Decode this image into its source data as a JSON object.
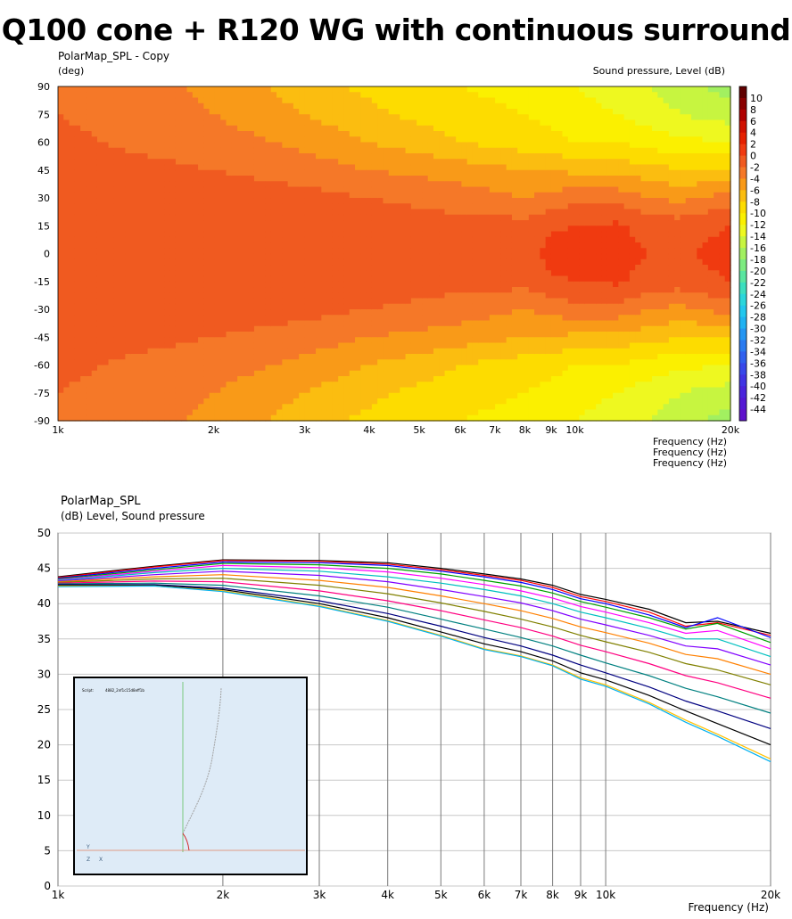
{
  "page": {
    "title": "Q100 cone + R120 WG with continuous surround"
  },
  "colors": {
    "heatmap_scale": [
      "#600000",
      "#8a0000",
      "#b00000",
      "#d01000",
      "#e52000",
      "#f03a10",
      "#f05a20",
      "#f57828",
      "#f99a18",
      "#fbbd10",
      "#fddc00",
      "#fbf000",
      "#eef820",
      "#c7f540",
      "#a2f060",
      "#7deb80",
      "#5ae6a0",
      "#3cdfbf",
      "#2ad6db",
      "#22c7ee",
      "#20b2f2",
      "#2496f2",
      "#2a7bf0",
      "#3060ee",
      "#3848ea",
      "#4034e4",
      "#4a24dc",
      "#5418d4",
      "#5e10cc"
    ],
    "inset_background": "#deebf7",
    "grid": "#c8c8c8"
  },
  "chart_data": [
    {
      "type": "heatmap",
      "title": "PolarMap_SPL  -  Copy",
      "ylabel": "(deg)",
      "zlabel": "Sound pressure, Level  (dB)",
      "xlabel_lines": [
        "Frequency  (Hz)",
        "Frequency  (Hz)",
        "Frequency  (Hz)"
      ],
      "x_scale": "log",
      "xlim": [
        1000,
        20000
      ],
      "ylim": [
        -90,
        90
      ],
      "x_ticks": [
        {
          "v": 1000,
          "label": "1k"
        },
        {
          "v": 2000,
          "label": "2k"
        },
        {
          "v": 3000,
          "label": "3k"
        },
        {
          "v": 4000,
          "label": "4k"
        },
        {
          "v": 5000,
          "label": "5k"
        },
        {
          "v": 6000,
          "label": "6k"
        },
        {
          "v": 7000,
          "label": "7k"
        },
        {
          "v": 8000,
          "label": "8k"
        },
        {
          "v": 9000,
          "label": "9k"
        },
        {
          "v": 10000,
          "label": "10k"
        },
        {
          "v": 20000,
          "label": "20k"
        }
      ],
      "y_ticks": [
        90,
        75,
        60,
        45,
        30,
        15,
        0,
        -15,
        -30,
        -45,
        -60,
        -75,
        -90
      ],
      "colorbar_ticks": [
        10,
        8,
        6,
        4,
        2,
        0,
        -2,
        -4,
        -6,
        -8,
        -10,
        -12,
        -14,
        -16,
        -18,
        -20,
        -22,
        -24,
        -26,
        -28,
        -30,
        -32,
        -34,
        -36,
        -38,
        -40,
        -42,
        -44
      ],
      "zlim": [
        -46,
        12
      ],
      "frequencies": [
        1000,
        1500,
        2000,
        3000,
        4000,
        5000,
        6000,
        7000,
        8000,
        9000,
        10000,
        12000,
        14000,
        16000,
        20000
      ],
      "angles": [
        0,
        15,
        30,
        45,
        60,
        75,
        90
      ],
      "levels": [
        [
          0,
          0,
          0,
          0,
          -0.5,
          -0.5,
          -0.5,
          -0.5,
          -0.5,
          0.5,
          0.8,
          0.8,
          0,
          -0.5,
          1
        ],
        [
          0,
          0,
          0,
          -0.5,
          -0.7,
          -1,
          -1.3,
          -1.3,
          -1.2,
          -0.2,
          0,
          0.3,
          -0.8,
          -1,
          0
        ],
        [
          -0.5,
          -0.5,
          -0.7,
          -1.3,
          -2,
          -2.5,
          -3,
          -3.5,
          -4,
          -3.5,
          -2.5,
          -2.5,
          -4,
          -4.5,
          -3
        ],
        [
          -1,
          -1.5,
          -2,
          -3,
          -4,
          -4.5,
          -5,
          -5.5,
          -6,
          -6,
          -6.5,
          -7,
          -7,
          -8,
          -8
        ],
        [
          -1.5,
          -2.5,
          -3,
          -4.5,
          -6,
          -7,
          -8,
          -8.5,
          -9,
          -9.5,
          -10,
          -10,
          -11,
          -11.5,
          -12
        ],
        [
          -2,
          -3,
          -4,
          -6,
          -7.5,
          -8.5,
          -9,
          -9.5,
          -10,
          -10.5,
          -11,
          -12,
          -13,
          -14,
          -15
        ],
        [
          -2.5,
          -3.5,
          -4.5,
          -7,
          -8.5,
          -9.5,
          -10,
          -10.5,
          -11,
          -11.5,
          -12,
          -13,
          -14,
          -15,
          -17
        ]
      ]
    },
    {
      "type": "line",
      "title": "PolarMap_SPL",
      "ylabel": "(dB)  Level, Sound pressure",
      "xlabel": "Frequency  (Hz)",
      "x_scale": "log",
      "xlim": [
        1000,
        20000
      ],
      "ylim": [
        0,
        50
      ],
      "x_ticks": [
        {
          "v": 1000,
          "label": "1k"
        },
        {
          "v": 2000,
          "label": "2k"
        },
        {
          "v": 3000,
          "label": "3k"
        },
        {
          "v": 4000,
          "label": "4k"
        },
        {
          "v": 5000,
          "label": "5k"
        },
        {
          "v": 6000,
          "label": "6k"
        },
        {
          "v": 7000,
          "label": "7k"
        },
        {
          "v": 8000,
          "label": "8k"
        },
        {
          "v": 9000,
          "label": "9k"
        },
        {
          "v": 10000,
          "label": "10k"
        },
        {
          "v": 20000,
          "label": "20k"
        }
      ],
      "y_ticks": [
        0,
        5,
        10,
        15,
        20,
        25,
        30,
        35,
        40,
        45,
        50
      ],
      "x": [
        1000,
        1500,
        2000,
        3000,
        4000,
        5000,
        6000,
        7000,
        8000,
        9000,
        10000,
        12000,
        14000,
        16000,
        20000
      ],
      "series": [
        {
          "color": "#000000",
          "values": [
            43.8,
            45.3,
            46.2,
            46.1,
            45.8,
            45.0,
            44.2,
            43.5,
            42.6,
            41.3,
            40.6,
            39.2,
            37.3,
            37.5,
            35.8
          ]
        },
        {
          "color": "#ff0000",
          "values": [
            43.7,
            45.2,
            46.1,
            46.0,
            45.6,
            44.8,
            44.0,
            43.3,
            42.3,
            41.0,
            40.3,
            38.8,
            36.8,
            37.3,
            35.5
          ]
        },
        {
          "color": "#0000ff",
          "values": [
            43.6,
            45.0,
            45.9,
            45.8,
            45.4,
            44.6,
            43.8,
            43.0,
            42.0,
            40.7,
            40.0,
            38.4,
            36.6,
            38.0,
            35.2
          ]
        },
        {
          "color": "#00a000",
          "values": [
            43.5,
            44.8,
            45.7,
            45.5,
            45.0,
            44.2,
            43.3,
            42.5,
            41.5,
            40.3,
            39.5,
            38.0,
            36.4,
            37.2,
            34.5
          ]
        },
        {
          "color": "#ff00ff",
          "values": [
            43.4,
            44.6,
            45.4,
            45.1,
            44.5,
            43.6,
            42.7,
            41.8,
            40.8,
            39.6,
            38.8,
            37.3,
            35.8,
            36.2,
            33.6
          ]
        },
        {
          "color": "#00c0c0",
          "values": [
            43.3,
            44.4,
            45.0,
            44.6,
            43.8,
            42.9,
            42.0,
            41.1,
            40.0,
            38.8,
            38.0,
            36.5,
            35.0,
            35.0,
            32.5
          ]
        },
        {
          "color": "#8000ff",
          "values": [
            43.2,
            44.1,
            44.6,
            44.0,
            43.1,
            42.0,
            41.0,
            40.1,
            39.0,
            37.8,
            37.0,
            35.5,
            34.0,
            33.6,
            31.3
          ]
        },
        {
          "color": "#ff8000",
          "values": [
            43.1,
            43.8,
            44.1,
            43.3,
            42.3,
            41.1,
            40.0,
            39.0,
            37.9,
            36.7,
            35.9,
            34.4,
            32.8,
            32.2,
            30.0
          ]
        },
        {
          "color": "#808000",
          "values": [
            43.0,
            43.5,
            43.6,
            42.6,
            41.4,
            40.1,
            38.9,
            37.8,
            36.7,
            35.5,
            34.6,
            33.1,
            31.5,
            30.6,
            28.5
          ]
        },
        {
          "color": "#ff0080",
          "values": [
            42.9,
            43.2,
            43.1,
            41.8,
            40.4,
            39.0,
            37.7,
            36.6,
            35.4,
            34.1,
            33.2,
            31.5,
            29.8,
            28.8,
            26.6
          ]
        },
        {
          "color": "#008080",
          "values": [
            42.8,
            42.9,
            42.6,
            41.1,
            39.5,
            37.8,
            36.4,
            35.2,
            34.0,
            32.7,
            31.6,
            29.8,
            28.0,
            26.8,
            24.5
          ]
        },
        {
          "color": "#000080",
          "values": [
            42.7,
            42.7,
            42.2,
            40.4,
            38.6,
            36.8,
            35.2,
            34.0,
            32.7,
            31.3,
            30.2,
            28.2,
            26.2,
            24.8,
            22.3
          ]
        },
        {
          "color": "#000000",
          "values": [
            42.6,
            42.6,
            42.0,
            40.0,
            38.0,
            36.0,
            34.3,
            33.2,
            31.9,
            30.2,
            29.2,
            27.0,
            24.8,
            23.0,
            20.0
          ]
        },
        {
          "color": "#ffc000",
          "values": [
            42.5,
            42.5,
            41.8,
            39.7,
            37.6,
            35.5,
            33.6,
            32.6,
            31.3,
            29.5,
            28.5,
            26.0,
            23.5,
            21.5,
            18.0
          ]
        },
        {
          "color": "#00b0f0",
          "values": [
            42.4,
            42.5,
            41.7,
            39.6,
            37.5,
            35.4,
            33.5,
            32.5,
            31.2,
            29.3,
            28.3,
            25.8,
            23.2,
            21.2,
            17.6
          ]
        }
      ]
    }
  ],
  "inset": {
    "script_label": "Script:",
    "script_value": "4882_2nf1c15d8eff1b",
    "axis_y": "Y",
    "axis_z": "Z",
    "axis_x": "X"
  }
}
